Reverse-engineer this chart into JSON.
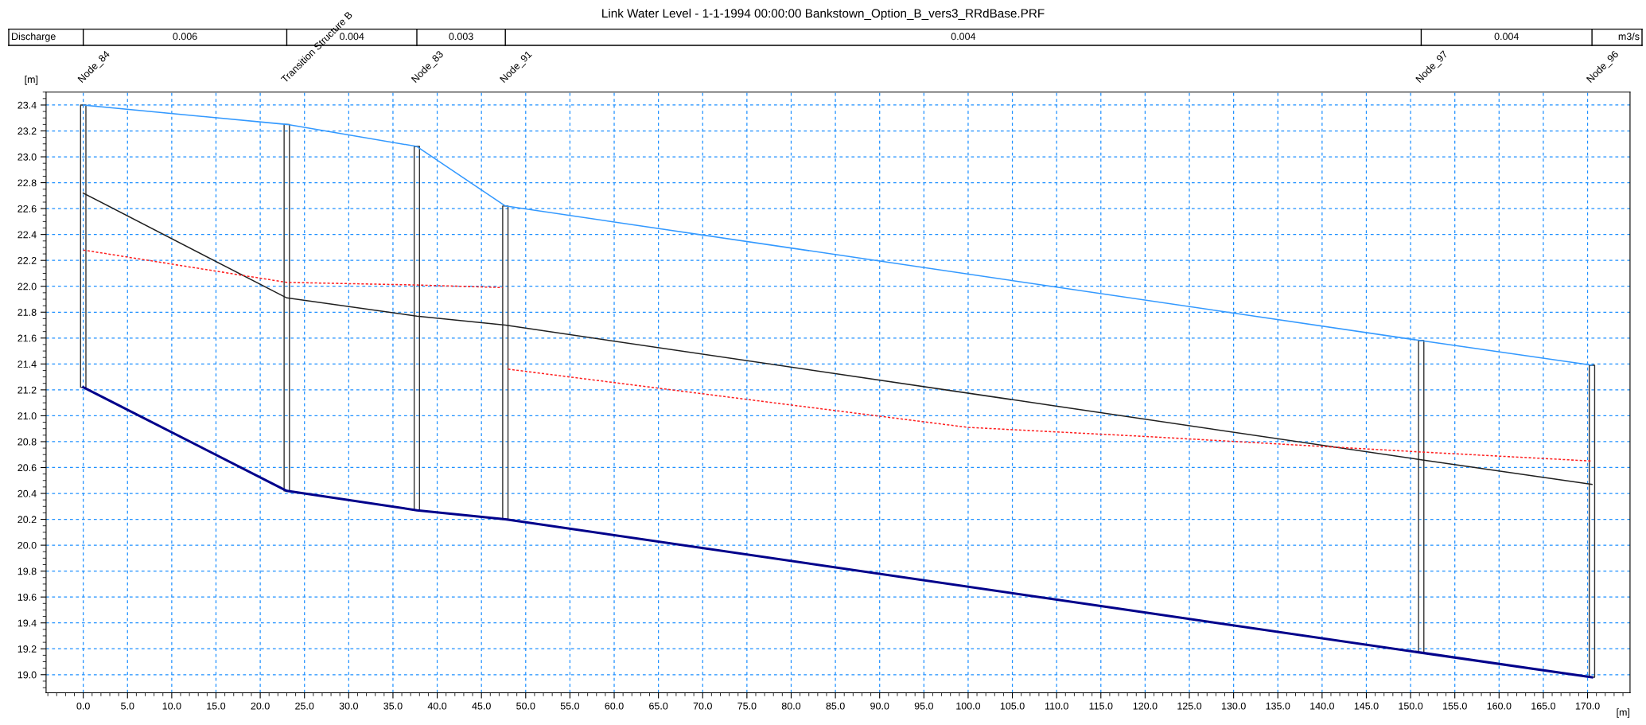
{
  "chart_data": {
    "type": "line",
    "title": "Link Water Level - 1-1-1994 00:00:00 Bankstown_Option_B_vers3_RRdBase.PRF",
    "xlabel": "[m]",
    "ylabel": "[m]",
    "xlim": [
      -4.2,
      174.8
    ],
    "ylim": [
      18.86,
      23.5
    ],
    "xticks": [
      {
        "value": 0,
        "label": "0.0"
      },
      {
        "value": 5,
        "label": "5.0"
      },
      {
        "value": 10,
        "label": "10.0"
      },
      {
        "value": 15,
        "label": "15.0"
      },
      {
        "value": 20,
        "label": "20.0"
      },
      {
        "value": 25,
        "label": "25.0"
      },
      {
        "value": 30,
        "label": "30.0"
      },
      {
        "value": 35,
        "label": "35.0"
      },
      {
        "value": 40,
        "label": "40.0"
      },
      {
        "value": 45,
        "label": "45.0"
      },
      {
        "value": 50,
        "label": "50.0"
      },
      {
        "value": 55,
        "label": "55.0"
      },
      {
        "value": 60,
        "label": "60.0"
      },
      {
        "value": 65,
        "label": "65.0"
      },
      {
        "value": 70,
        "label": "70.0"
      },
      {
        "value": 75,
        "label": "75.0"
      },
      {
        "value": 80,
        "label": "80.0"
      },
      {
        "value": 85,
        "label": "85.0"
      },
      {
        "value": 90,
        "label": "90.0"
      },
      {
        "value": 95,
        "label": "95.0"
      },
      {
        "value": 100,
        "label": "100.0"
      },
      {
        "value": 105,
        "label": "105.0"
      },
      {
        "value": 110,
        "label": "110.0"
      },
      {
        "value": 115,
        "label": "115.0"
      },
      {
        "value": 120,
        "label": "120.0"
      },
      {
        "value": 125,
        "label": "125.0"
      },
      {
        "value": 130,
        "label": "130.0"
      },
      {
        "value": 135,
        "label": "135.0"
      },
      {
        "value": 140,
        "label": "140.0"
      },
      {
        "value": 145,
        "label": "145.0"
      },
      {
        "value": 150,
        "label": "150.0"
      },
      {
        "value": 155,
        "label": "155.0"
      },
      {
        "value": 160,
        "label": "160.0"
      },
      {
        "value": 165,
        "label": "165.0"
      },
      {
        "value": 170,
        "label": "170.0"
      }
    ],
    "yticks": [
      {
        "value": 19,
        "label": "19.0"
      },
      19.2,
      19.4,
      19.6,
      19.8,
      {
        "value": 20,
        "label": "20.0"
      },
      20.2,
      20.4,
      20.6,
      20.8,
      {
        "value": 21,
        "label": "21.0"
      },
      21.2,
      21.4,
      21.6,
      21.8,
      {
        "value": 22,
        "label": "22.0"
      },
      22.2,
      22.4,
      22.6,
      22.8,
      {
        "value": 23,
        "label": "23.0"
      },
      23.2,
      23.4
    ],
    "grid": true,
    "series": [
      {
        "color": "#3399ff",
        "x": [
          0.0,
          23.0,
          37.7,
          47.7,
          151.2,
          170.5
        ],
        "values": [
          23.4,
          23.25,
          23.08,
          22.62,
          21.58,
          21.39
        ],
        "line_style": "solid"
      },
      {
        "color": "#202020",
        "x": [
          0.0,
          23.0,
          37.7,
          47.7,
          151.2,
          170.5
        ],
        "values": [
          22.72,
          21.91,
          21.77,
          21.7,
          20.66,
          20.47
        ],
        "line_style": "solid"
      },
      {
        "color": "#ff2020",
        "x": [
          0.0,
          23.0,
          37.7,
          47.4,
          47.7,
          48.0,
          100.0,
          120.0,
          151.2,
          170.5
        ],
        "values": [
          22.28,
          22.03,
          22.01,
          21.99,
          null,
          21.36,
          20.91,
          20.84,
          20.72,
          20.65
        ],
        "line_style": "dashed"
      },
      {
        "color": "#00008b",
        "x": [
          0.0,
          23.0,
          37.7,
          47.7,
          151.2,
          170.5
        ],
        "values": [
          21.22,
          20.42,
          20.27,
          20.2,
          19.17,
          18.98
        ],
        "line_style": "solid"
      }
    ],
    "ref_lines": [
      {
        "axis": "x",
        "value": 0.0,
        "label": "Node_84"
      },
      {
        "axis": "x",
        "value": 23.0,
        "label": "Transition Structure B"
      },
      {
        "axis": "x",
        "value": 37.7,
        "label": "Node_83"
      },
      {
        "axis": "x",
        "value": 47.7,
        "label": "Node_91"
      },
      {
        "axis": "x",
        "value": 151.2,
        "label": "Node_97"
      },
      {
        "axis": "x",
        "value": 170.5,
        "label": "Node_96"
      }
    ],
    "annotations": [
      "Discharge",
      "0.006",
      "0.004",
      "0.003",
      "0.004",
      "0.004",
      "m3/s"
    ]
  }
}
